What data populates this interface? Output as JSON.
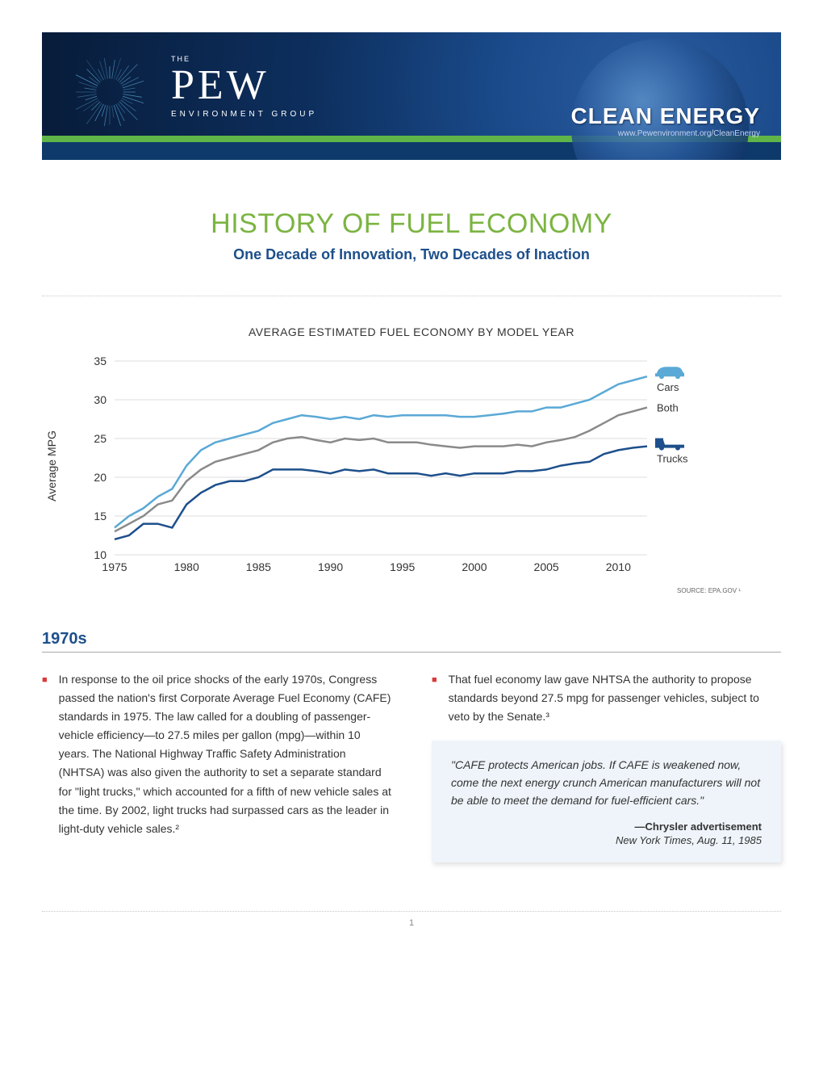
{
  "banner": {
    "the": "THE",
    "brand": "PEW",
    "sub": "ENVIRONMENT GROUP",
    "tag": "CLEAN ENERGY",
    "url": "www.Pewenvironment.org/CleanEnergy"
  },
  "title": "HISTORY OF FUEL ECONOMY",
  "subtitle": "One Decade of Innovation, Two Decades of Inaction",
  "chart": {
    "type": "line",
    "title": "AVERAGE ESTIMATED FUEL ECONOMY BY MODEL YEAR",
    "y_label": "Average MPG",
    "source": "SOURCE: EPA.GOV ¹",
    "x_ticks": [
      1975,
      1980,
      1985,
      1990,
      1995,
      2000,
      2005,
      2010
    ],
    "y_ticks": [
      10,
      15,
      20,
      25,
      30,
      35
    ],
    "xlim": [
      1975,
      2012
    ],
    "ylim": [
      10,
      35
    ],
    "grid_color": "#dedede",
    "axis_color": "#333333",
    "line_width": 2.5,
    "background": "#ffffff",
    "label_fontsize": 14,
    "series": [
      {
        "name": "Cars",
        "color": "#5aa9d6",
        "legend_icon": "car",
        "points": [
          [
            1975,
            13.5
          ],
          [
            1976,
            15.0
          ],
          [
            1977,
            16.0
          ],
          [
            1978,
            17.5
          ],
          [
            1979,
            18.5
          ],
          [
            1980,
            21.5
          ],
          [
            1981,
            23.5
          ],
          [
            1982,
            24.5
          ],
          [
            1983,
            25.0
          ],
          [
            1984,
            25.5
          ],
          [
            1985,
            26.0
          ],
          [
            1986,
            27.0
          ],
          [
            1987,
            27.5
          ],
          [
            1988,
            28.0
          ],
          [
            1989,
            27.8
          ],
          [
            1990,
            27.5
          ],
          [
            1991,
            27.8
          ],
          [
            1992,
            27.5
          ],
          [
            1993,
            28.0
          ],
          [
            1994,
            27.8
          ],
          [
            1995,
            28.0
          ],
          [
            1996,
            28.0
          ],
          [
            1997,
            28.0
          ],
          [
            1998,
            28.0
          ],
          [
            1999,
            27.8
          ],
          [
            2000,
            27.8
          ],
          [
            2001,
            28.0
          ],
          [
            2002,
            28.2
          ],
          [
            2003,
            28.5
          ],
          [
            2004,
            28.5
          ],
          [
            2005,
            29.0
          ],
          [
            2006,
            29.0
          ],
          [
            2007,
            29.5
          ],
          [
            2008,
            30.0
          ],
          [
            2009,
            31.0
          ],
          [
            2010,
            32.0
          ],
          [
            2011,
            32.5
          ],
          [
            2012,
            33.0
          ]
        ]
      },
      {
        "name": "Both",
        "color": "#8a8a8a",
        "legend_icon": "none",
        "points": [
          [
            1975,
            13.0
          ],
          [
            1976,
            14.0
          ],
          [
            1977,
            15.0
          ],
          [
            1978,
            16.5
          ],
          [
            1979,
            17.0
          ],
          [
            1980,
            19.5
          ],
          [
            1981,
            21.0
          ],
          [
            1982,
            22.0
          ],
          [
            1983,
            22.5
          ],
          [
            1984,
            23.0
          ],
          [
            1985,
            23.5
          ],
          [
            1986,
            24.5
          ],
          [
            1987,
            25.0
          ],
          [
            1988,
            25.2
          ],
          [
            1989,
            24.8
          ],
          [
            1990,
            24.5
          ],
          [
            1991,
            25.0
          ],
          [
            1992,
            24.8
          ],
          [
            1993,
            25.0
          ],
          [
            1994,
            24.5
          ],
          [
            1995,
            24.5
          ],
          [
            1996,
            24.5
          ],
          [
            1997,
            24.2
          ],
          [
            1998,
            24.0
          ],
          [
            1999,
            23.8
          ],
          [
            2000,
            24.0
          ],
          [
            2001,
            24.0
          ],
          [
            2002,
            24.0
          ],
          [
            2003,
            24.2
          ],
          [
            2004,
            24.0
          ],
          [
            2005,
            24.5
          ],
          [
            2006,
            24.8
          ],
          [
            2007,
            25.2
          ],
          [
            2008,
            26.0
          ],
          [
            2009,
            27.0
          ],
          [
            2010,
            28.0
          ],
          [
            2011,
            28.5
          ],
          [
            2012,
            29.0
          ]
        ]
      },
      {
        "name": "Trucks",
        "color": "#1d4f8b",
        "legend_icon": "truck",
        "points": [
          [
            1975,
            12.0
          ],
          [
            1976,
            12.5
          ],
          [
            1977,
            14.0
          ],
          [
            1978,
            14.0
          ],
          [
            1979,
            13.5
          ],
          [
            1980,
            16.5
          ],
          [
            1981,
            18.0
          ],
          [
            1982,
            19.0
          ],
          [
            1983,
            19.5
          ],
          [
            1984,
            19.5
          ],
          [
            1985,
            20.0
          ],
          [
            1986,
            21.0
          ],
          [
            1987,
            21.0
          ],
          [
            1988,
            21.0
          ],
          [
            1989,
            20.8
          ],
          [
            1990,
            20.5
          ],
          [
            1991,
            21.0
          ],
          [
            1992,
            20.8
          ],
          [
            1993,
            21.0
          ],
          [
            1994,
            20.5
          ],
          [
            1995,
            20.5
          ],
          [
            1996,
            20.5
          ],
          [
            1997,
            20.2
          ],
          [
            1998,
            20.5
          ],
          [
            1999,
            20.2
          ],
          [
            2000,
            20.5
          ],
          [
            2001,
            20.5
          ],
          [
            2002,
            20.5
          ],
          [
            2003,
            20.8
          ],
          [
            2004,
            20.8
          ],
          [
            2005,
            21.0
          ],
          [
            2006,
            21.5
          ],
          [
            2007,
            21.8
          ],
          [
            2008,
            22.0
          ],
          [
            2009,
            23.0
          ],
          [
            2010,
            23.5
          ],
          [
            2011,
            23.8
          ],
          [
            2012,
            24.0
          ]
        ]
      }
    ]
  },
  "section_heading": "1970s",
  "col1_bullet": "In response to the oil price shocks of the early 1970s, Congress passed the nation's first Corporate Average Fuel Economy (CAFE) standards in 1975. The law called for a doubling of passenger-vehicle efficiency—to 27.5 miles per gallon (mpg)—within 10 years. The National Highway Traffic Safety Administration (NHTSA) was also given the authority to set a separate standard for \"light trucks,\" which accounted for a fifth of new vehicle sales at the time. By 2002, light trucks had surpassed cars as the leader in light-duty vehicle sales.²",
  "col2_bullet": "That fuel economy law gave NHTSA the authority to propose standards beyond 27.5 mpg for passenger vehicles, subject to veto by the Senate.³",
  "quote": {
    "text": "\"CAFE protects American jobs. If CAFE is weakened now, come the next energy crunch American manufacturers will not be able to meet the demand for fuel-efficient cars.\"",
    "attribution": "—Chrysler advertisement",
    "source": "New York Times, Aug. 11, 1985",
    "bg_color": "#eef4fa"
  },
  "page_num": "1"
}
